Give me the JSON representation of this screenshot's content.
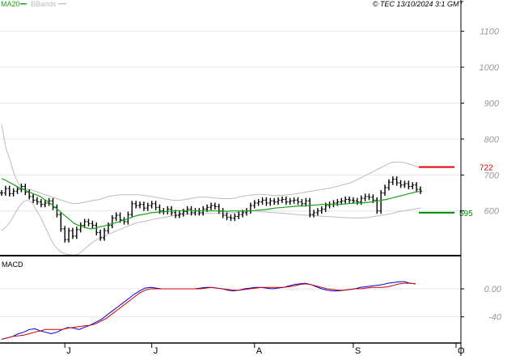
{
  "header": {
    "legend_ma20": "MA20",
    "legend_bbands": "BBands",
    "copyright": "© TEC 13/10/2024 3:1 GMT"
  },
  "colors": {
    "ma20": "#19a319",
    "bbands": "#bbbbbb",
    "price": "#000000",
    "resistance": "#dd0000",
    "support": "#008800",
    "macd": "#0000dd",
    "signal": "#cc0000",
    "grid": "#e6e6e6"
  },
  "chart_data": [
    {
      "type": "candlestick",
      "title": "",
      "ylim": [
        480,
        1160
      ],
      "yticks": [
        700,
        800,
        900,
        1000,
        1100
      ],
      "ytick_labels": [
        "700",
        "800",
        "900",
        "1000",
        "1100"
      ],
      "ticks_shown": [
        "1100",
        "1000",
        "900",
        "800",
        "700",
        "600"
      ],
      "x_labels": [
        "J",
        "J",
        "A",
        "S",
        "O"
      ],
      "x_label_index": [
        16,
        38,
        64,
        89,
        115
      ],
      "price": [
        650,
        662,
        648,
        655,
        660,
        668,
        652,
        640,
        630,
        625,
        618,
        622,
        628,
        610,
        590,
        550,
        520,
        545,
        530,
        548,
        560,
        570,
        565,
        560,
        540,
        525,
        545,
        560,
        580,
        588,
        575,
        570,
        590,
        620,
        615,
        618,
        608,
        615,
        620,
        610,
        600,
        598,
        605,
        595,
        588,
        592,
        598,
        605,
        595,
        600,
        595,
        605,
        610,
        615,
        612,
        600,
        588,
        582,
        580,
        585,
        590,
        595,
        600,
        615,
        622,
        625,
        630,
        622,
        628,
        625,
        630,
        632,
        625,
        628,
        630,
        625,
        620,
        628,
        590,
        595,
        600,
        605,
        615,
        618,
        622,
        625,
        628,
        632,
        630,
        628,
        625,
        635,
        640,
        638,
        630,
        600,
        650,
        665,
        680,
        688,
        678,
        672,
        676,
        668,
        672,
        660,
        655
      ],
      "ma20": [
        690,
        685,
        678,
        672,
        665,
        660,
        655,
        650,
        645,
        640,
        632,
        625,
        615,
        605,
        595,
        585,
        575,
        565,
        560,
        556,
        552,
        550,
        552,
        556,
        558,
        562,
        565,
        568,
        572,
        576,
        580,
        585,
        588,
        590,
        592,
        595,
        596,
        597,
        598,
        599,
        600,
        601,
        601,
        601,
        601,
        600,
        600,
        600,
        600,
        600,
        600,
        599,
        599,
        599,
        600,
        600,
        600,
        600,
        600,
        601,
        602,
        603,
        604,
        606,
        608,
        609,
        610,
        611,
        612,
        613,
        614,
        614,
        615,
        616,
        617,
        618,
        618,
        619,
        618,
        618,
        619,
        620,
        621,
        622,
        622,
        623,
        624,
        626,
        628,
        630,
        632,
        635,
        638,
        641,
        644,
        647,
        650,
        653,
        654
      ],
      "bb_upper": [
        840,
        775,
        740,
        700,
        675,
        662,
        660,
        658,
        654,
        650,
        646,
        642,
        638,
        634,
        630,
        626,
        622,
        620,
        621,
        623,
        626,
        628,
        630,
        632,
        636,
        640,
        642,
        644,
        645,
        645,
        645,
        645,
        645,
        644,
        642,
        640,
        638,
        636,
        634,
        632,
        630,
        629,
        630,
        632,
        634,
        636,
        638,
        638,
        638,
        637,
        636,
        635,
        634,
        634,
        635,
        637,
        640,
        642,
        644,
        645,
        646,
        646,
        645,
        644,
        643,
        643,
        644,
        645,
        646,
        648,
        650,
        652,
        654,
        656,
        658,
        660,
        662,
        664,
        667,
        670,
        673,
        676,
        680,
        686,
        692,
        698,
        704,
        710,
        716,
        722,
        728,
        734,
        736,
        736,
        735,
        732,
        728,
        724,
        720
      ],
      "bb_lower": [
        545,
        555,
        570,
        590,
        610,
        625,
        630,
        625,
        605,
        585,
        560,
        535,
        510,
        495,
        485,
        480,
        478,
        477,
        480,
        490,
        500,
        510,
        518,
        525,
        530,
        535,
        540,
        545,
        550,
        555,
        560,
        565,
        568,
        570,
        572,
        575,
        578,
        580,
        582,
        584,
        586,
        588,
        590,
        591,
        592,
        592,
        592,
        592,
        593,
        593,
        593,
        593,
        593,
        594,
        595,
        596,
        597,
        598,
        600,
        600,
        599,
        598,
        597,
        596,
        595,
        594,
        593,
        592,
        591,
        590,
        589,
        588,
        588,
        587,
        586,
        585,
        584,
        584,
        583,
        582,
        582,
        581,
        580,
        580,
        580,
        581,
        582,
        584,
        586,
        588,
        590,
        592,
        595,
        598,
        600,
        602,
        604,
        606,
        608
      ],
      "levels": [
        {
          "name": "resistance",
          "value": 722,
          "label": "722"
        },
        {
          "name": "support",
          "value": 595,
          "label": "595"
        }
      ]
    },
    {
      "type": "line",
      "title": "MACD",
      "ylim": [
        -75,
        45
      ],
      "yticks": [
        0,
        -40
      ],
      "ytick_labels": [
        "0.00",
        "-40"
      ],
      "series": [
        {
          "name": "MACD",
          "values": [
            -72,
            -70,
            -68,
            -64,
            -62,
            -58,
            -57,
            -60,
            -62,
            -64,
            -62,
            -58,
            -55,
            -56,
            -58,
            -55,
            -52,
            -48,
            -44,
            -38,
            -32,
            -26,
            -20,
            -14,
            -8,
            -3,
            1,
            2,
            1,
            0,
            0,
            0,
            0,
            0,
            0,
            0,
            1,
            2,
            2,
            1,
            0,
            -2,
            -3,
            -2,
            0,
            1,
            2,
            2,
            1,
            0,
            1,
            2,
            4,
            6,
            7,
            8,
            6,
            3,
            0,
            -2,
            -3,
            -3,
            -2,
            -1,
            0,
            2,
            3,
            4,
            5,
            6,
            8,
            9,
            10,
            10,
            8,
            7
          ]
        },
        {
          "name": "Signal",
          "values": [
            -72,
            -70,
            -68,
            -67,
            -66,
            -64,
            -62,
            -60,
            -58,
            -58,
            -58,
            -58,
            -56,
            -55,
            -54,
            -53,
            -52,
            -50,
            -46,
            -42,
            -36,
            -30,
            -24,
            -18,
            -12,
            -6,
            -2,
            0,
            0,
            0,
            0,
            0,
            0,
            0,
            0,
            0,
            0,
            1,
            2,
            1,
            0,
            -1,
            -2,
            -2,
            -1,
            0,
            1,
            2,
            2,
            2,
            2,
            2,
            3,
            4,
            6,
            7,
            6,
            4,
            2,
            0,
            -1,
            -2,
            -2,
            -1,
            0,
            0,
            1,
            2,
            2,
            2,
            3,
            5,
            7,
            8,
            8,
            7
          ]
        }
      ]
    }
  ]
}
